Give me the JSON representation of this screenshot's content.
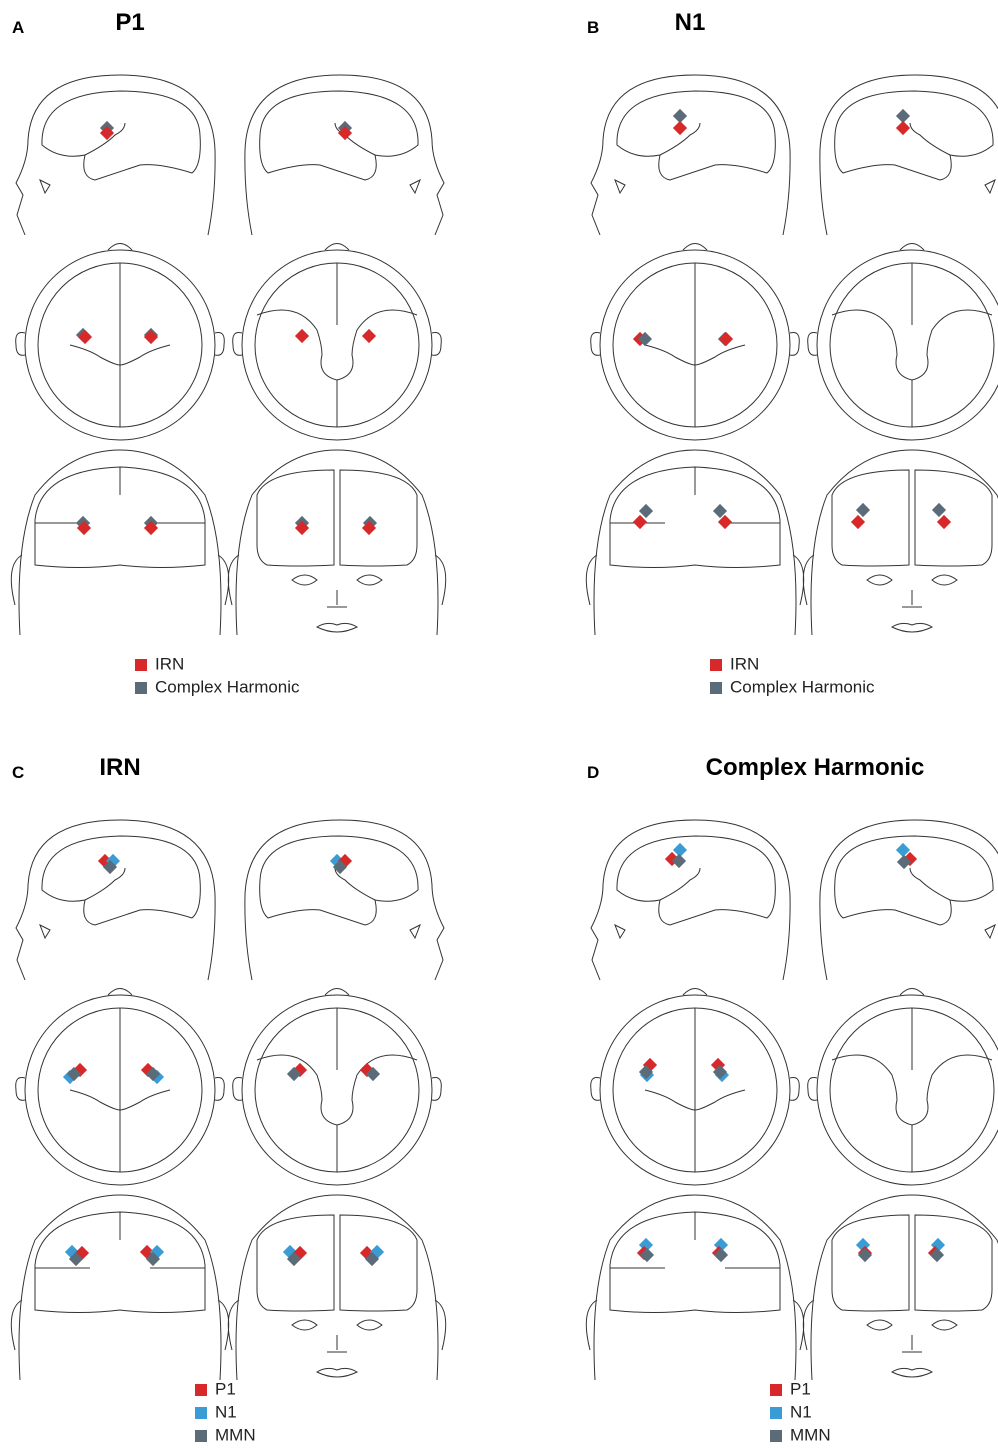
{
  "panels": [
    {
      "letter": "A",
      "title": "P1",
      "legend": [
        {
          "name": "IRN",
          "color": "#d7282a"
        },
        {
          "name": "Complex Harmonic",
          "color": "#5b6b77"
        }
      ]
    },
    {
      "letter": "B",
      "title": "N1",
      "legend": [
        {
          "name": "IRN",
          "color": "#d7282a"
        },
        {
          "name": "Complex Harmonic",
          "color": "#5b6b77"
        }
      ]
    },
    {
      "letter": "C",
      "title": "IRN",
      "legend": [
        {
          "name": "P1",
          "color": "#d7282a"
        },
        {
          "name": "N1",
          "color": "#3a9bd5"
        },
        {
          "name": "MMN",
          "color": "#5b6b77"
        }
      ]
    },
    {
      "letter": "D",
      "title": "Complex Harmonic",
      "legend": [
        {
          "name": "P1",
          "color": "#d7282a"
        },
        {
          "name": "N1",
          "color": "#3a9bd5"
        },
        {
          "name": "MMN",
          "color": "#5b6b77"
        }
      ]
    }
  ]
}
